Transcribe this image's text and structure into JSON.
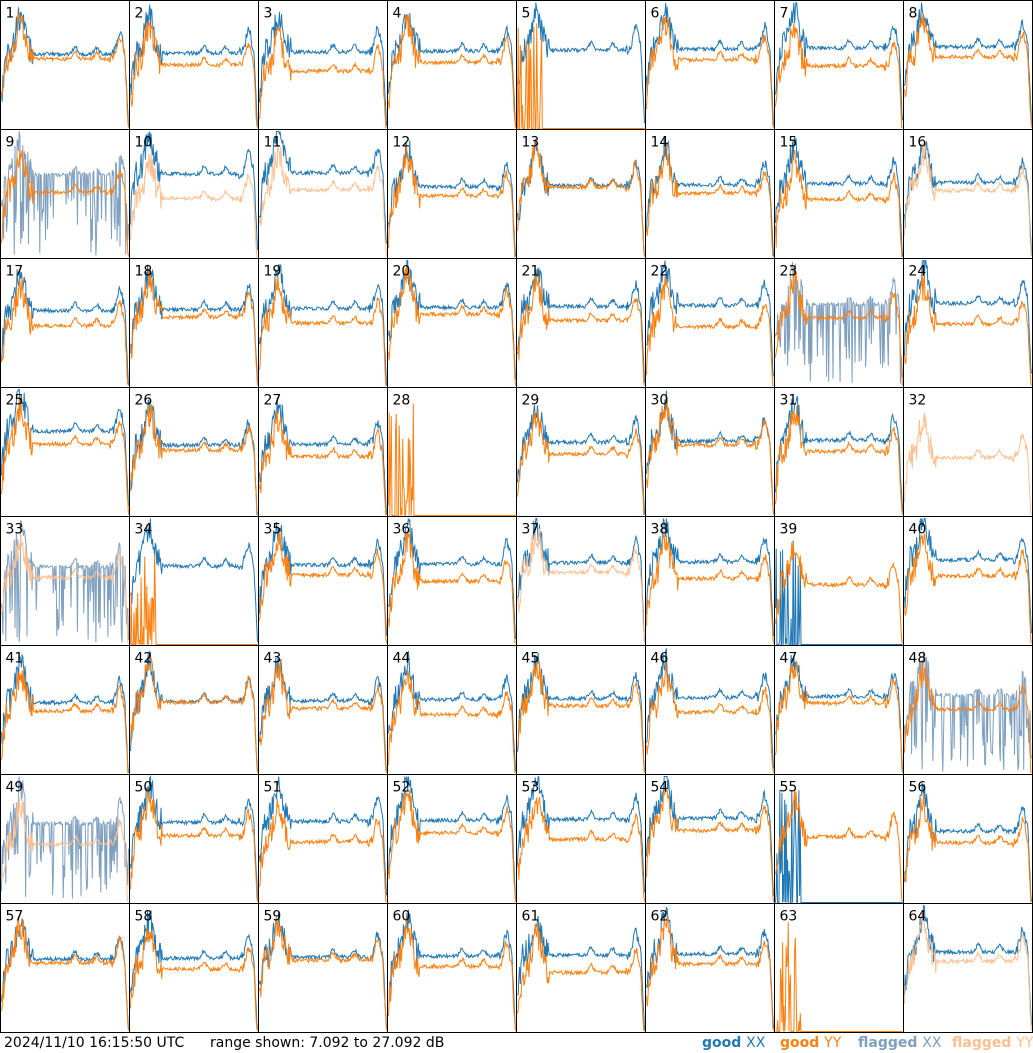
{
  "footer": {
    "timestamp": "2024/11/10 16:15:50 UTC",
    "range": "range shown: 7.092 to 27.092 dB"
  },
  "legend": [
    {
      "key": "good_xx",
      "word": "good",
      "pol": "XX",
      "color": "#1f77b4"
    },
    {
      "key": "good_yy",
      "word": "good",
      "pol": "YY",
      "color": "#ff7f0e"
    },
    {
      "key": "flagged_xx",
      "word": "flagged",
      "pol": "XX",
      "color": "#7f9fbf"
    },
    {
      "key": "flagged_yy",
      "word": "flagged",
      "pol": "YY",
      "color": "#ffbf8f"
    }
  ],
  "chart_data": {
    "type": "line",
    "grid": {
      "rows": 8,
      "cols": 8
    },
    "ylim": [
      7.092,
      27.092
    ],
    "units": "dB",
    "panels": [
      {
        "id": "1",
        "xx": "good",
        "yy": "good"
      },
      {
        "id": "2",
        "xx": "good",
        "yy": "good"
      },
      {
        "id": "3",
        "xx": "good",
        "yy": "good"
      },
      {
        "id": "4",
        "xx": "good",
        "yy": "good"
      },
      {
        "id": "5",
        "xx": "good",
        "yy": "dead"
      },
      {
        "id": "6",
        "xx": "good",
        "yy": "good"
      },
      {
        "id": "7",
        "xx": "good",
        "yy": "good"
      },
      {
        "id": "8",
        "xx": "good",
        "yy": "good"
      },
      {
        "id": "9",
        "xx": "flagged",
        "yy": "good"
      },
      {
        "id": "10",
        "xx": "good",
        "yy": "flagged"
      },
      {
        "id": "11",
        "xx": "good",
        "yy": "flagged"
      },
      {
        "id": "12",
        "xx": "good",
        "yy": "good"
      },
      {
        "id": "13",
        "xx": "good",
        "yy": "good"
      },
      {
        "id": "14",
        "xx": "good",
        "yy": "good"
      },
      {
        "id": "15",
        "xx": "good",
        "yy": "good"
      },
      {
        "id": "16",
        "xx": "good",
        "yy": "flagged"
      },
      {
        "id": "17",
        "xx": "good",
        "yy": "good"
      },
      {
        "id": "18",
        "xx": "good",
        "yy": "good"
      },
      {
        "id": "19",
        "xx": "good",
        "yy": "good"
      },
      {
        "id": "20",
        "xx": "good",
        "yy": "good"
      },
      {
        "id": "21",
        "xx": "good",
        "yy": "good"
      },
      {
        "id": "22",
        "xx": "good",
        "yy": "good"
      },
      {
        "id": "23",
        "xx": "flagged",
        "yy": "good"
      },
      {
        "id": "24",
        "xx": "good",
        "yy": "good"
      },
      {
        "id": "25",
        "xx": "good",
        "yy": "good"
      },
      {
        "id": "26",
        "xx": "good",
        "yy": "good"
      },
      {
        "id": "27",
        "xx": "good",
        "yy": "good"
      },
      {
        "id": "28",
        "xx": "none",
        "yy": "dead"
      },
      {
        "id": "29",
        "xx": "good",
        "yy": "good"
      },
      {
        "id": "30",
        "xx": "good",
        "yy": "good"
      },
      {
        "id": "31",
        "xx": "good",
        "yy": "good"
      },
      {
        "id": "32",
        "xx": "none",
        "yy": "flagged"
      },
      {
        "id": "33",
        "xx": "flagged",
        "yy": "flagged"
      },
      {
        "id": "34",
        "xx": "good",
        "yy": "dead"
      },
      {
        "id": "35",
        "xx": "good",
        "yy": "good"
      },
      {
        "id": "36",
        "xx": "good",
        "yy": "good"
      },
      {
        "id": "37",
        "xx": "good",
        "yy": "flagged"
      },
      {
        "id": "38",
        "xx": "good",
        "yy": "good"
      },
      {
        "id": "39",
        "xx": "dead",
        "yy": "good"
      },
      {
        "id": "40",
        "xx": "good",
        "yy": "good"
      },
      {
        "id": "41",
        "xx": "good",
        "yy": "good"
      },
      {
        "id": "42",
        "xx": "good",
        "yy": "good"
      },
      {
        "id": "43",
        "xx": "good",
        "yy": "good"
      },
      {
        "id": "44",
        "xx": "good",
        "yy": "good"
      },
      {
        "id": "45",
        "xx": "good",
        "yy": "good"
      },
      {
        "id": "46",
        "xx": "good",
        "yy": "good"
      },
      {
        "id": "47",
        "xx": "good",
        "yy": "good"
      },
      {
        "id": "48",
        "xx": "flagged",
        "yy": "good"
      },
      {
        "id": "49",
        "xx": "flagged",
        "yy": "flagged"
      },
      {
        "id": "50",
        "xx": "good",
        "yy": "good"
      },
      {
        "id": "51",
        "xx": "good",
        "yy": "good"
      },
      {
        "id": "52",
        "xx": "good",
        "yy": "good"
      },
      {
        "id": "53",
        "xx": "good",
        "yy": "good"
      },
      {
        "id": "54",
        "xx": "good",
        "yy": "good"
      },
      {
        "id": "55",
        "xx": "dead",
        "yy": "good"
      },
      {
        "id": "56",
        "xx": "good",
        "yy": "good"
      },
      {
        "id": "57",
        "xx": "good",
        "yy": "good"
      },
      {
        "id": "58",
        "xx": "good",
        "yy": "good"
      },
      {
        "id": "59",
        "xx": "good",
        "yy": "good"
      },
      {
        "id": "60",
        "xx": "good",
        "yy": "good"
      },
      {
        "id": "61",
        "xx": "good",
        "yy": "good"
      },
      {
        "id": "62",
        "xx": "good",
        "yy": "good"
      },
      {
        "id": "63",
        "xx": "none",
        "yy": "dead"
      },
      {
        "id": "64",
        "xx": "good",
        "yy": "flagged"
      }
    ]
  }
}
